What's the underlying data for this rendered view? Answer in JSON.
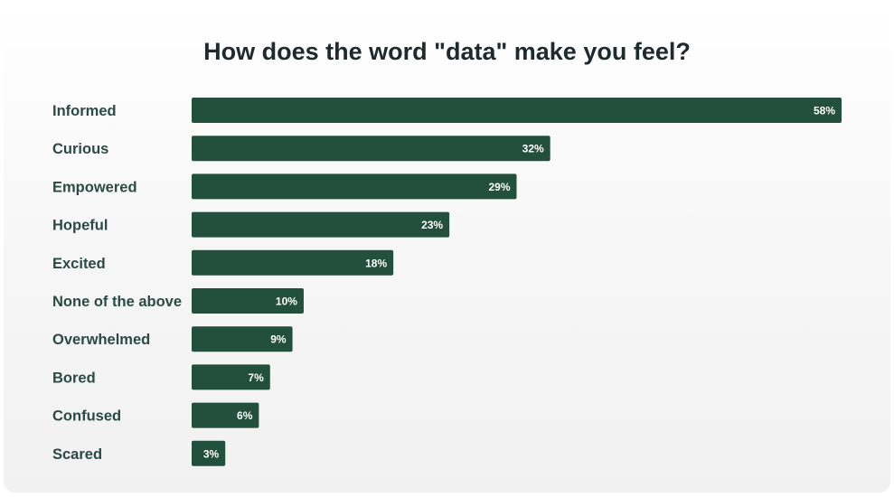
{
  "chart_data": {
    "type": "bar",
    "orientation": "horizontal",
    "title": "How does the word \"data\" make you feel?",
    "xlabel": "",
    "ylabel": "",
    "xlim": [
      0,
      58
    ],
    "grid": false,
    "value_suffix": "%",
    "bar_color": "#234f3e",
    "categories": [
      "Informed",
      "Curious",
      "Empowered",
      "Hopeful",
      "Excited",
      "None of the above",
      "Overwhelmed",
      "Bored",
      "Confused",
      "Scared"
    ],
    "values": [
      58,
      32,
      29,
      23,
      18,
      10,
      9,
      7,
      6,
      3
    ],
    "value_labels": [
      "58%",
      "32%",
      "29%",
      "23%",
      "18%",
      "10%",
      "9%",
      "7%",
      "6%",
      "3%"
    ]
  }
}
